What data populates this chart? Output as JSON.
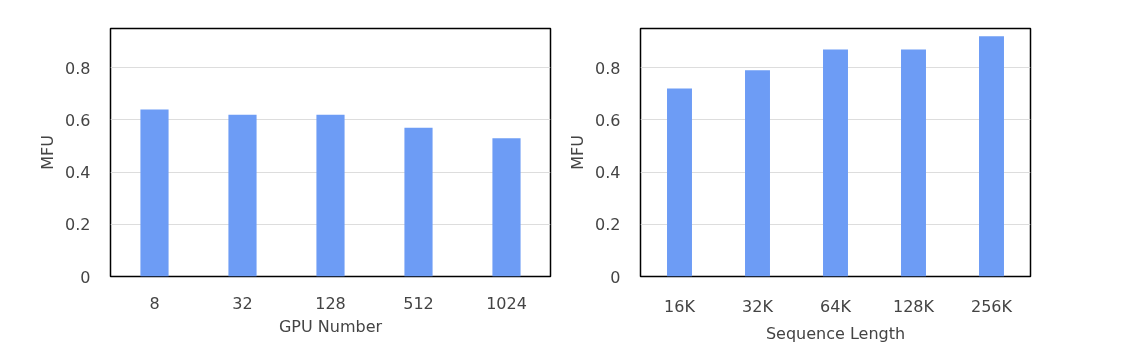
{
  "chart_data": [
    {
      "type": "bar",
      "xlabel": "GPU Number",
      "ylabel": "MFU",
      "categories": [
        "8",
        "32",
        "128",
        "512",
        "1024"
      ],
      "values": [
        0.64,
        0.62,
        0.62,
        0.57,
        0.53
      ],
      "color": "#6d9cf5",
      "ylim": [
        0,
        0.95
      ],
      "yticks": [
        0,
        0.2,
        0.4,
        0.6,
        0.8
      ],
      "grid": "y"
    },
    {
      "type": "bar",
      "xlabel": "Sequence Length",
      "ylabel": "MFU",
      "categories": [
        "16K",
        "32K",
        "64K",
        "128K",
        "256K"
      ],
      "values": [
        0.72,
        0.79,
        0.87,
        0.87,
        0.92
      ],
      "color": "#6d9cf5",
      "ylim": [
        0,
        0.95
      ],
      "yticks": [
        0,
        0.2,
        0.4,
        0.6,
        0.8
      ],
      "grid": "y"
    }
  ]
}
